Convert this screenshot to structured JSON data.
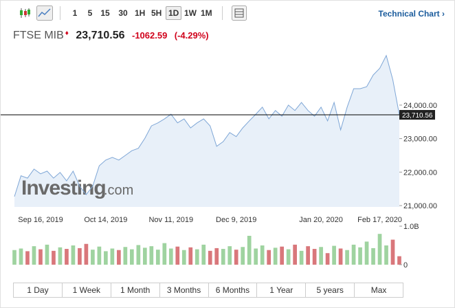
{
  "toolbar": {
    "intervals": [
      "1",
      "5",
      "15",
      "30",
      "1H",
      "5H",
      "1D",
      "1W",
      "1M"
    ],
    "link": "Technical Chart"
  },
  "header": {
    "name": "FTSE MIB",
    "price": "23,710.56",
    "change": "-1062.59",
    "change_percent": "(-4.29%)"
  },
  "watermark": {
    "brand": "Investing",
    "suffix": ".com"
  },
  "chart_data": {
    "type": "area",
    "categories": [
      null,
      null,
      null,
      null,
      "Sep 16, 2019",
      null,
      null,
      null,
      null,
      null,
      null,
      null,
      null,
      null,
      "Oct 14, 2019",
      null,
      null,
      null,
      null,
      null,
      null,
      null,
      null,
      null,
      "Nov 11, 2019",
      null,
      null,
      null,
      null,
      null,
      null,
      null,
      null,
      null,
      "Dec 9, 2019",
      null,
      null,
      null,
      null,
      null,
      null,
      null,
      null,
      null,
      null,
      null,
      null,
      "Jan 20, 2020",
      null,
      null,
      null,
      null,
      null,
      null,
      null,
      null,
      "Feb 17, 2020",
      null,
      null,
      null
    ],
    "series": [
      {
        "name": "FTSE MIB",
        "color": "#7ea6d6",
        "fill": "#e8f0f9",
        "values": [
          21270,
          21890,
          21820,
          22090,
          21950,
          22030,
          21820,
          21990,
          21740,
          22030,
          21580,
          21330,
          21580,
          22190,
          22360,
          22440,
          22360,
          22500,
          22640,
          22710,
          23010,
          23380,
          23470,
          23590,
          23730,
          23470,
          23590,
          23320,
          23470,
          23590,
          23380,
          22770,
          22910,
          23180,
          23060,
          23320,
          23530,
          23730,
          23940,
          23590,
          23840,
          23670,
          24000,
          23840,
          24080,
          23840,
          23670,
          23940,
          23530,
          24080,
          23260,
          23940,
          24490,
          24490,
          24550,
          24900,
          25100,
          25480,
          24760,
          23710.56
        ]
      }
    ],
    "ylim": [
      20960,
      25640
    ],
    "yticks": [
      {
        "value": 21000,
        "label": "21,000.00"
      },
      {
        "value": 22000,
        "label": "22,000.00"
      },
      {
        "value": 23000,
        "label": "23,000.00"
      },
      {
        "value": 24000,
        "label": "24,000.00"
      }
    ],
    "last_value": {
      "value": 23710.56,
      "label": "23,710.56"
    },
    "volume": {
      "values": [
        380000000,
        420000000,
        350000000,
        480000000,
        400000000,
        520000000,
        360000000,
        450000000,
        410000000,
        500000000,
        430000000,
        540000000,
        390000000,
        470000000,
        350000000,
        420000000,
        380000000,
        460000000,
        400000000,
        510000000,
        440000000,
        480000000,
        390000000,
        560000000,
        420000000,
        470000000,
        380000000,
        450000000,
        400000000,
        520000000,
        360000000,
        430000000,
        410000000,
        480000000,
        390000000,
        460000000,
        750000000,
        420000000,
        500000000,
        380000000,
        440000000,
        470000000,
        400000000,
        520000000,
        360000000,
        480000000,
        410000000,
        460000000,
        300000000,
        490000000,
        420000000,
        380000000,
        520000000,
        450000000,
        600000000,
        430000000,
        800000000,
        500000000,
        650000000,
        220000000
      ],
      "up_color": "#9fd3a0",
      "down_color": "#d9777b",
      "ylim": [
        0,
        1000000000
      ],
      "yticks": [
        {
          "value": 0,
          "label": "0"
        },
        {
          "value": 1000000000,
          "label": "1.0B"
        }
      ]
    }
  },
  "ranges": [
    "1 Day",
    "1 Week",
    "1 Month",
    "3 Months",
    "6 Months",
    "1 Year",
    "5 years",
    "Max"
  ]
}
